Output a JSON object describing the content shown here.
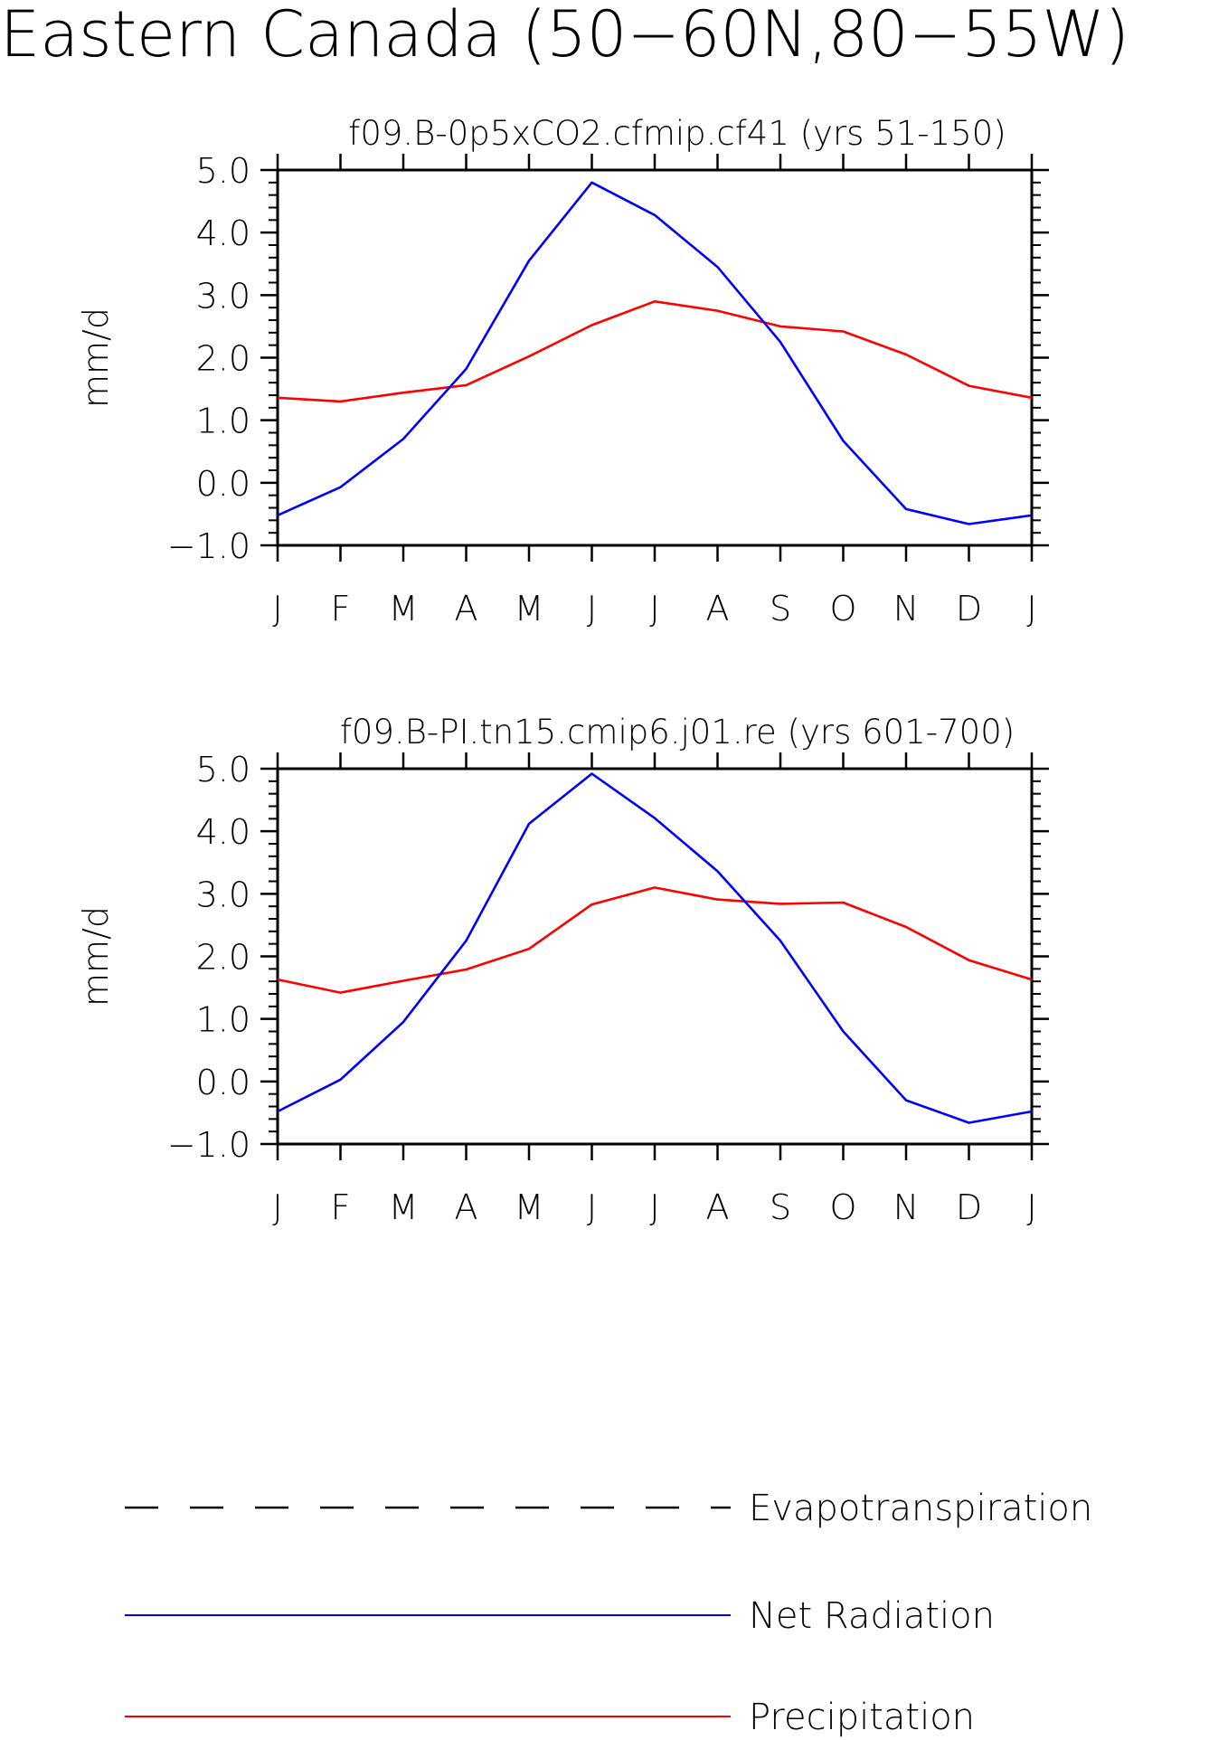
{
  "page_title": "Eastern Canada (50-60N,80-55W)",
  "chart_data": [
    {
      "type": "line",
      "title": "f09.B-0p5xCO2.cfmip.cf41 (yrs 51-150)",
      "ylabel": "mm/d",
      "xlabel": "",
      "categories": [
        "J",
        "F",
        "M",
        "A",
        "M",
        "J",
        "J",
        "A",
        "S",
        "O",
        "N",
        "D",
        "J"
      ],
      "ylim": [
        -1.0,
        5.0
      ],
      "yticks": [
        "-1.0",
        "0.0",
        "1.0",
        "2.0",
        "3.0",
        "4.0",
        "5.0"
      ],
      "series": [
        {
          "name": "Net Radiation",
          "color": "#0000ff",
          "values": [
            -0.52,
            -0.07,
            0.7,
            1.82,
            3.55,
            4.8,
            4.28,
            3.45,
            2.25,
            0.67,
            -0.42,
            -0.66,
            -0.52
          ]
        },
        {
          "name": "Precipitation",
          "color": "#ff0000",
          "values": [
            1.36,
            1.3,
            1.44,
            1.56,
            2.02,
            2.52,
            2.9,
            2.75,
            2.5,
            2.42,
            2.05,
            1.55,
            1.36
          ]
        }
      ]
    },
    {
      "type": "line",
      "title": "f09.B-PI.tn15.cmip6.j01.re (yrs 601-700)",
      "ylabel": "mm/d",
      "xlabel": "",
      "categories": [
        "J",
        "F",
        "M",
        "A",
        "M",
        "J",
        "J",
        "A",
        "S",
        "O",
        "N",
        "D",
        "J"
      ],
      "ylim": [
        -1.0,
        5.0
      ],
      "yticks": [
        "-1.0",
        "0.0",
        "1.0",
        "2.0",
        "3.0",
        "4.0",
        "5.0"
      ],
      "series": [
        {
          "name": "Net Radiation",
          "color": "#0000ff",
          "values": [
            -0.48,
            0.03,
            0.95,
            2.25,
            4.12,
            4.92,
            4.21,
            3.36,
            2.25,
            0.8,
            -0.3,
            -0.66,
            -0.48
          ]
        },
        {
          "name": "Precipitation",
          "color": "#ff0000",
          "values": [
            1.63,
            1.42,
            1.61,
            1.79,
            2.12,
            2.83,
            3.1,
            2.91,
            2.84,
            2.86,
            2.47,
            1.94,
            1.63
          ]
        }
      ]
    }
  ],
  "legend": [
    {
      "label": "Evapotranspiration",
      "color": "#000000",
      "style": "dashed"
    },
    {
      "label": "Net Radiation",
      "color": "#0000ff",
      "style": "solid"
    },
    {
      "label": "Precipitation",
      "color": "#ff0000",
      "style": "solid"
    }
  ]
}
